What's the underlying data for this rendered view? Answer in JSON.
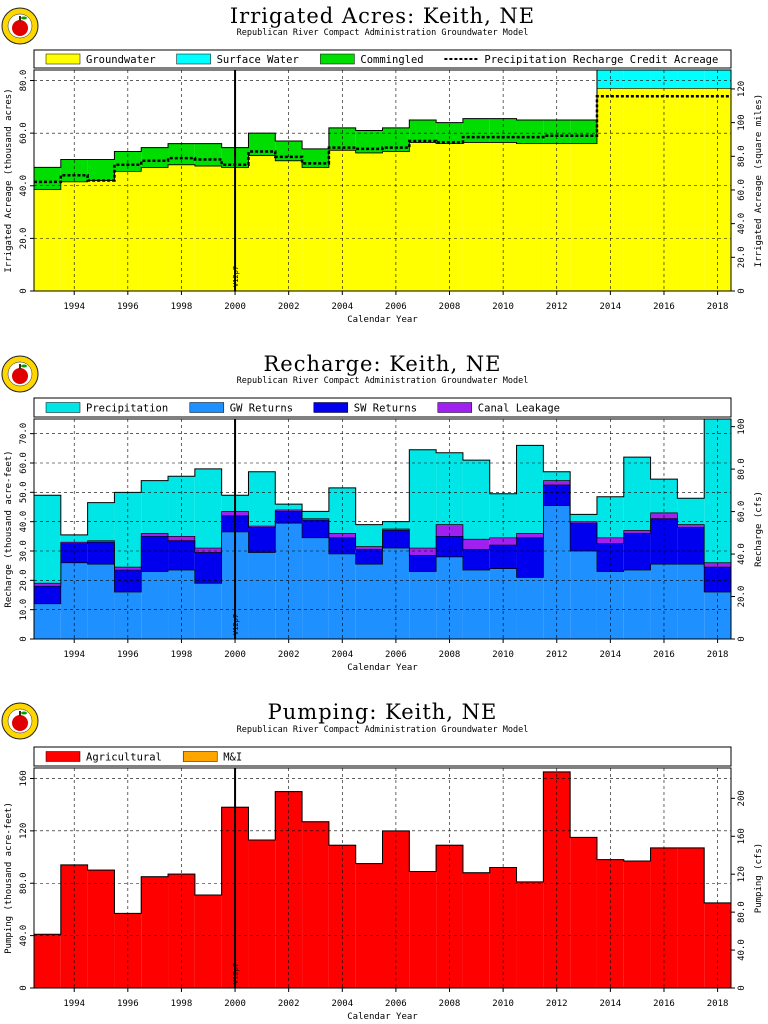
{
  "charts": [
    {
      "id": "irrigated",
      "title": "Irrigated Acres: Keith, NE",
      "subtitle": "Republican River Compact Administration Groundwater Model",
      "ylabel": "Irrigated Acreage (thousand acres)",
      "y2label": "Irrigated Acreage (square miles)",
      "xlabel": "Calendar Year",
      "marker_label": "V12p7",
      "colors": {
        "Groundwater": "#ffff00",
        "Surface Water": "#00ffff",
        "Commingled": "#00dd00",
        "Precipitation Recharge Credit Acreage": "#000000"
      },
      "legend": [
        {
          "label": "Groundwater",
          "kind": "box"
        },
        {
          "label": "Surface Water",
          "kind": "box"
        },
        {
          "label": "Commingled",
          "kind": "box"
        },
        {
          "label": "Precipitation Recharge Credit Acreage",
          "kind": "dash"
        }
      ],
      "y_ticks": [
        "0",
        "20.0",
        "40.0",
        "60.0",
        "80.0"
      ],
      "y2_ticks": [
        "0",
        "20.0",
        "40.0",
        "60.0",
        "80.0",
        "100",
        "120"
      ],
      "x_ticks": [
        "1994",
        "1996",
        "1998",
        "2000",
        "2002",
        "2004",
        "2006",
        "2008",
        "2010",
        "2012",
        "2014",
        "2016",
        "2018"
      ]
    },
    {
      "id": "recharge",
      "title": "Recharge: Keith, NE",
      "subtitle": "Republican River Compact Administration Groundwater Model",
      "ylabel": "Recharge (thousand acre-feet)",
      "y2label": "Recharge (cfs)",
      "xlabel": "Calendar Year",
      "marker_label": "V12p7",
      "colors": {
        "Precipitation": "#00e5e5",
        "GW Returns": "#1e90ff",
        "SW Returns": "#0000ee",
        "Canal Leakage": "#a020f0"
      },
      "legend": [
        {
          "label": "Precipitation",
          "kind": "box"
        },
        {
          "label": "GW Returns",
          "kind": "box"
        },
        {
          "label": "SW Returns",
          "kind": "box"
        },
        {
          "label": "Canal Leakage",
          "kind": "box"
        }
      ],
      "y_ticks": [
        "0",
        "10.0",
        "20.0",
        "30.0",
        "40.0",
        "50.0",
        "60.0",
        "70.0"
      ],
      "y2_ticks": [
        "0",
        "20.0",
        "40.0",
        "60.0",
        "80.0",
        "100"
      ],
      "x_ticks": [
        "1994",
        "1996",
        "1998",
        "2000",
        "2002",
        "2004",
        "2006",
        "2008",
        "2010",
        "2012",
        "2014",
        "2016",
        "2018"
      ]
    },
    {
      "id": "pumping",
      "title": "Pumping: Keith, NE",
      "subtitle": "Republican River Compact Administration Groundwater Model",
      "ylabel": "Pumping (thousand acre-feet)",
      "y2label": "Pumping (cfs)",
      "xlabel": "Calendar Year",
      "marker_label": "V12p7",
      "colors": {
        "Agricultural": "#ff0000",
        "M&I": "#ffa500"
      },
      "legend": [
        {
          "label": "Agricultural",
          "kind": "box"
        },
        {
          "label": "M&I",
          "kind": "box"
        }
      ],
      "y_ticks": [
        "0",
        "40.0",
        "80.0",
        "120",
        "160"
      ],
      "y2_ticks": [
        "0",
        "40.0",
        "80.0",
        "120",
        "160",
        "200"
      ],
      "x_ticks": [
        "1994",
        "1996",
        "1998",
        "2000",
        "2002",
        "2004",
        "2006",
        "2008",
        "2010",
        "2012",
        "2014",
        "2016",
        "2018"
      ]
    }
  ],
  "chart_data": [
    {
      "type": "area",
      "stacked": true,
      "step": true,
      "title": "Irrigated Acres: Keith, NE",
      "subtitle": "Republican River Compact Administration Groundwater Model",
      "xlabel": "Calendar Year",
      "ylabel": "Irrigated Acreage (thousand acres)",
      "y2label": "Irrigated Acreage (square miles)",
      "ylim": [
        0,
        84
      ],
      "y2lim": [
        0,
        131.25
      ],
      "xlim": [
        1993,
        2019
      ],
      "grid": true,
      "legend_position": "top",
      "marker_year": 2000.5,
      "marker_label": "V12p7",
      "x": [
        1993,
        1994,
        1995,
        1996,
        1997,
        1998,
        1999,
        2000,
        2001,
        2002,
        2003,
        2004,
        2005,
        2006,
        2007,
        2008,
        2009,
        2010,
        2011,
        2012,
        2013,
        2014,
        2015,
        2016,
        2017,
        2018
      ],
      "series": [
        {
          "name": "Groundwater",
          "values": [
            38.5,
            41.5,
            42.0,
            45.5,
            47.0,
            48.0,
            47.5,
            47.0,
            51.5,
            49.5,
            47.0,
            53.5,
            52.5,
            53.0,
            56.5,
            56.0,
            56.5,
            56.5,
            56.0,
            56.0,
            56.0,
            77.0,
            77.0,
            77.0,
            77.0,
            77.0
          ]
        },
        {
          "name": "Surface Water",
          "values": [
            0,
            0,
            0,
            0,
            0,
            0,
            0,
            0,
            0,
            0,
            0,
            0,
            0,
            0,
            0,
            0,
            0,
            0,
            0,
            0,
            0,
            7.0,
            7.0,
            7.0,
            7.0,
            7.0
          ]
        },
        {
          "name": "Commingled",
          "values": [
            8.5,
            8.5,
            8.0,
            7.5,
            7.5,
            8.0,
            8.5,
            7.5,
            8.5,
            7.5,
            7.0,
            8.5,
            8.5,
            9.0,
            8.5,
            8.0,
            9.0,
            9.0,
            9.0,
            9.0,
            9.0,
            0,
            0,
            0,
            0,
            0
          ]
        },
        {
          "name": "Precipitation Recharge Credit Acreage",
          "line": true,
          "values": [
            41.5,
            44.0,
            42.0,
            48.0,
            49.5,
            50.5,
            50.0,
            48.0,
            53.0,
            51.0,
            48.5,
            54.5,
            54.0,
            54.5,
            57.0,
            56.5,
            58.5,
            58.5,
            58.5,
            59.0,
            59.0,
            74.0,
            74.0,
            74.0,
            74.0,
            74.0
          ]
        }
      ]
    },
    {
      "type": "area",
      "stacked": true,
      "step": true,
      "title": "Recharge: Keith, NE",
      "subtitle": "Republican River Compact Administration Groundwater Model",
      "xlabel": "Calendar Year",
      "ylabel": "Recharge (thousand acre-feet)",
      "y2label": "Recharge (cfs)",
      "ylim": [
        0,
        75
      ],
      "y2lim": [
        0,
        103.6
      ],
      "xlim": [
        1993,
        2019
      ],
      "grid": true,
      "legend_position": "top",
      "marker_year": 2000.5,
      "marker_label": "V12p7",
      "x": [
        1993,
        1994,
        1995,
        1996,
        1997,
        1998,
        1999,
        2000,
        2001,
        2002,
        2003,
        2004,
        2005,
        2006,
        2007,
        2008,
        2009,
        2010,
        2011,
        2012,
        2013,
        2014,
        2015,
        2016,
        2017,
        2018
      ],
      "series": [
        {
          "name": "GW Returns",
          "values": [
            12.0,
            26.0,
            25.5,
            16.0,
            23.0,
            23.5,
            19.0,
            36.5,
            29.5,
            39.5,
            34.5,
            29.0,
            25.5,
            31.0,
            23.0,
            28.0,
            23.5,
            24.0,
            21.0,
            45.5,
            30.0,
            23.0,
            23.5,
            25.5,
            25.5,
            16.0
          ]
        },
        {
          "name": "SW Returns",
          "values": [
            6.0,
            6.5,
            7.5,
            7.5,
            12.0,
            10.0,
            10.5,
            5.5,
            8.5,
            4.0,
            6.0,
            5.5,
            5.0,
            6.0,
            5.5,
            7.0,
            7.0,
            8.0,
            13.5,
            7.0,
            9.5,
            9.5,
            12.5,
            15.5,
            12.5,
            8.5
          ]
        },
        {
          "name": "Canal Leakage",
          "values": [
            1.0,
            0.5,
            0.5,
            1.0,
            1.0,
            1.5,
            1.5,
            1.5,
            0.5,
            0.5,
            0.5,
            1.5,
            1.0,
            0.5,
            2.5,
            4.0,
            3.5,
            2.5,
            1.5,
            1.5,
            0.5,
            2.0,
            1.0,
            2.0,
            1.0,
            1.5
          ]
        },
        {
          "name": "Precipitation",
          "values": [
            30.0,
            2.5,
            13.0,
            25.5,
            18.0,
            20.5,
            27.0,
            5.5,
            18.5,
            2.0,
            2.5,
            15.5,
            7.5,
            2.5,
            33.5,
            24.5,
            27.0,
            15.0,
            30.0,
            3.0,
            2.5,
            14.0,
            25.0,
            11.5,
            9.0,
            49.0
          ]
        }
      ]
    },
    {
      "type": "area",
      "stacked": true,
      "step": true,
      "title": "Pumping: Keith, NE",
      "subtitle": "Republican River Compact Administration Groundwater Model",
      "xlabel": "Calendar Year",
      "ylabel": "Pumping (thousand acre-feet)",
      "y2label": "Pumping (cfs)",
      "ylim": [
        0,
        168
      ],
      "y2lim": [
        0,
        232
      ],
      "xlim": [
        1993,
        2019
      ],
      "grid": true,
      "legend_position": "top",
      "marker_year": 2000.5,
      "marker_label": "V12p7",
      "x": [
        1993,
        1994,
        1995,
        1996,
        1997,
        1998,
        1999,
        2000,
        2001,
        2002,
        2003,
        2004,
        2005,
        2006,
        2007,
        2008,
        2009,
        2010,
        2011,
        2012,
        2013,
        2014,
        2015,
        2016,
        2017,
        2018
      ],
      "series": [
        {
          "name": "Agricultural",
          "values": [
            41.0,
            94.0,
            90.0,
            57.0,
            85.0,
            87.0,
            71.0,
            138.0,
            113.0,
            150.0,
            127.0,
            109.0,
            95.0,
            120.0,
            89.0,
            109.0,
            88.0,
            92.0,
            81.0,
            165.0,
            115.0,
            98.0,
            97.0,
            107.0,
            107.0,
            65.0
          ]
        },
        {
          "name": "M&I",
          "values": [
            0,
            0,
            0,
            0,
            0,
            0,
            0,
            0,
            0,
            0,
            0,
            0,
            0,
            0,
            0,
            0,
            0,
            0,
            0,
            0,
            0,
            0,
            0,
            0,
            0,
            0
          ]
        }
      ]
    }
  ]
}
